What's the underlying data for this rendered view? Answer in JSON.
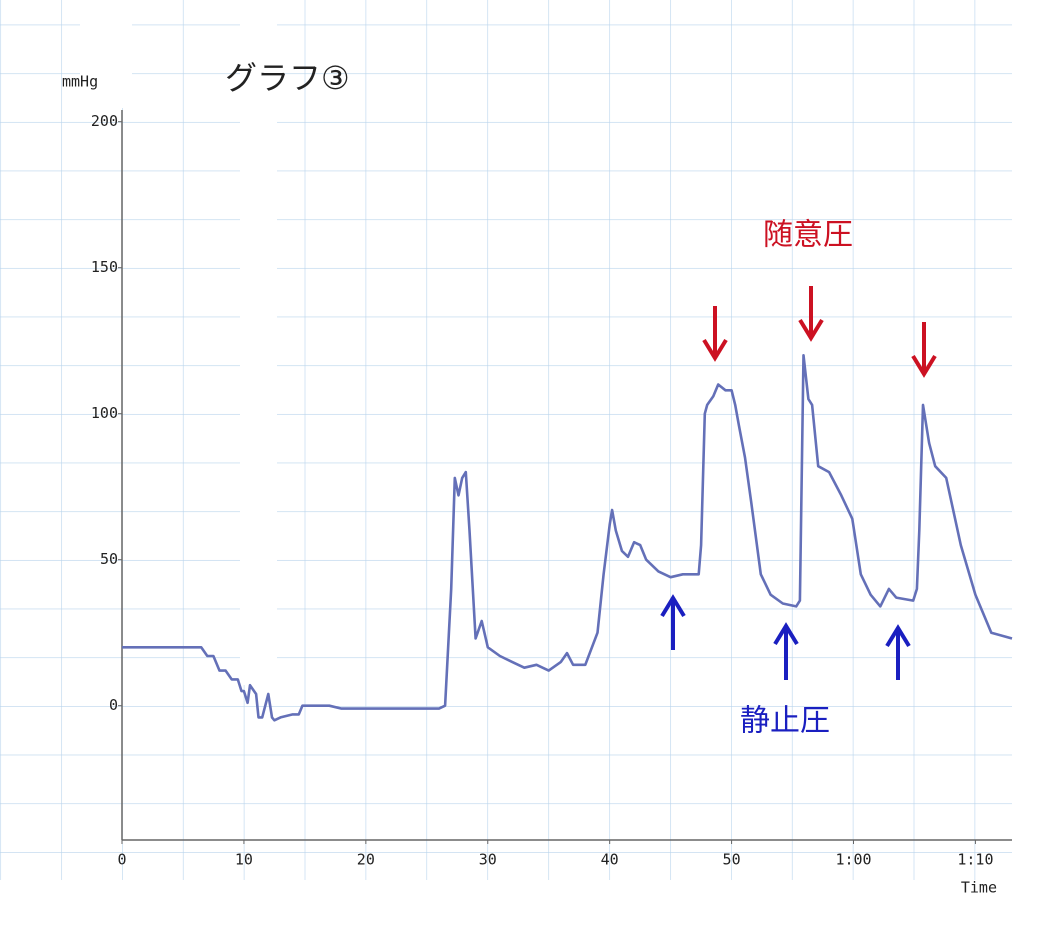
{
  "chart_data": {
    "type": "line",
    "title": "グラフ③",
    "y_label": "mmHg",
    "x_label": "Time",
    "annotations": [
      "随意圧",
      "静止圧"
    ],
    "xlim": [
      0,
      73
    ],
    "ylim": [
      -46,
      204
    ],
    "xticks": [
      0,
      10,
      20,
      30,
      40,
      50,
      {
        "value": 60,
        "label": "1:00"
      },
      {
        "value": 70,
        "label": "1:10"
      }
    ],
    "yticks": [
      0,
      50,
      100,
      150,
      200
    ],
    "series": [
      {
        "color": "#6470b8",
        "x": [
          0,
          6.5,
          7,
          7.5,
          8,
          8.5,
          9,
          9.5,
          9.8,
          10,
          10.3,
          10.5,
          11,
          11.2,
          11.5,
          12,
          12.3,
          12.5,
          13,
          14,
          14.5,
          14.8,
          17,
          18,
          26,
          26.5,
          27,
          27.3,
          27.6,
          27.9,
          28.2,
          28.5,
          29,
          29.5,
          30,
          31,
          32,
          33,
          34,
          35,
          36,
          36.5,
          37,
          38,
          39,
          39.5,
          40,
          40.2,
          40.5,
          41,
          41.5,
          42,
          42.5,
          43,
          44,
          45,
          46,
          47.3,
          47.5,
          47.8,
          48,
          48.5,
          48.9,
          49.5,
          50,
          50.3,
          50.6,
          51.1,
          51.6,
          52.4,
          53.2,
          54.2,
          55.3,
          55.6,
          55.9,
          56.3,
          56.6,
          57.1,
          58,
          59,
          59.9,
          60.6,
          61.4,
          62.2,
          62.9,
          63.5,
          64.9,
          65.2,
          65.4,
          65.7,
          66.2,
          66.7,
          67.6,
          68.8,
          70,
          71.3,
          73
        ],
        "values": [
          20,
          20,
          17,
          17,
          12,
          12,
          9,
          9,
          5,
          5,
          1,
          7,
          4,
          -4,
          -4,
          4,
          -4,
          -5,
          -4,
          -3,
          -3,
          0,
          0,
          -1,
          -1,
          0,
          40,
          78,
          72,
          78,
          80,
          60,
          23,
          29,
          20,
          17,
          15,
          13,
          14,
          12,
          15,
          18,
          14,
          14,
          25,
          45,
          62,
          67,
          60,
          53,
          51,
          56,
          55,
          50,
          46,
          44,
          45,
          45,
          55,
          100,
          103,
          106,
          110,
          108,
          108,
          103,
          96,
          85,
          70,
          45,
          38,
          35,
          34,
          36,
          120,
          105,
          103,
          82,
          80,
          72,
          64,
          45,
          38,
          34,
          40,
          37,
          36,
          40,
          60,
          103,
          90,
          82,
          78,
          55,
          38,
          25,
          23
        ]
      }
    ]
  }
}
